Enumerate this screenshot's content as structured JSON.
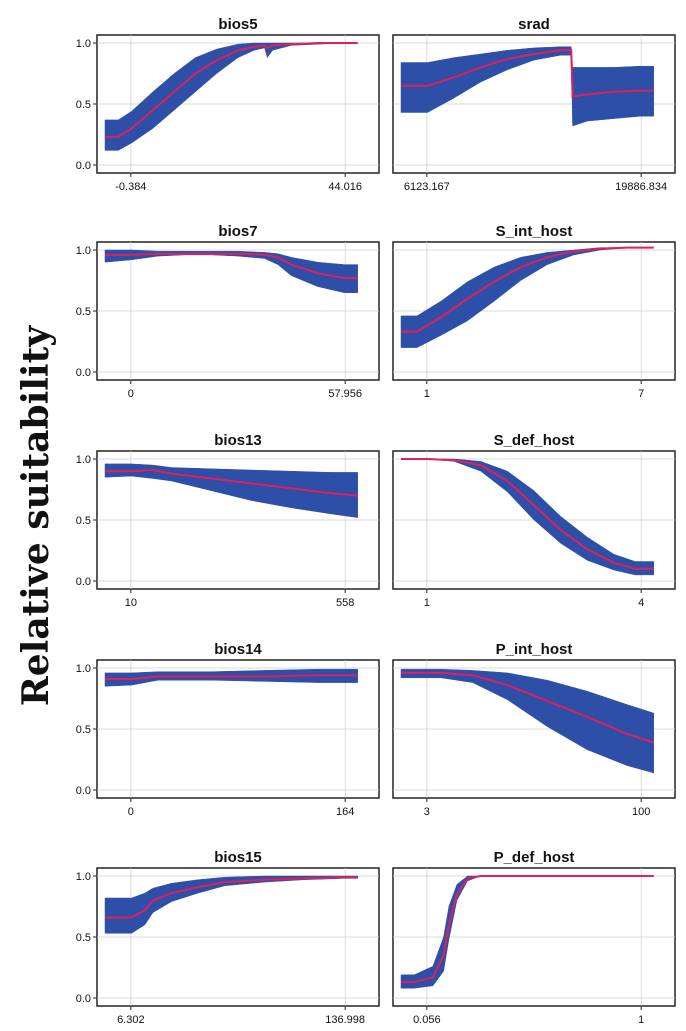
{
  "ylabel": "Relative suitability",
  "colors": {
    "band": "#2e4fa8",
    "line": "#e0205a",
    "frame": "#222222",
    "grid": "#cccccc"
  },
  "chart_data": [
    {
      "type": "area",
      "title": "bios5",
      "xticks": [
        "-0.384",
        "44.016"
      ],
      "yticks": [
        "0.0",
        "0.5",
        "1.0"
      ],
      "ylim": [
        0,
        1
      ],
      "xlim": [
        0,
        1
      ],
      "x": [
        0,
        0.05,
        0.1,
        0.18,
        0.26,
        0.34,
        0.42,
        0.5,
        0.56,
        0.6,
        0.61,
        0.63,
        0.7,
        0.8,
        0.9,
        0.95
      ],
      "y": [
        0.23,
        0.23,
        0.3,
        0.45,
        0.6,
        0.75,
        0.86,
        0.94,
        0.97,
        0.98,
        0.96,
        0.98,
        0.99,
        1.0,
        1.0,
        1.0
      ],
      "y_low": [
        0.12,
        0.12,
        0.18,
        0.3,
        0.45,
        0.6,
        0.75,
        0.88,
        0.94,
        0.96,
        0.88,
        0.94,
        0.98,
        0.99,
        1.0,
        1.0
      ],
      "y_high": [
        0.37,
        0.37,
        0.44,
        0.6,
        0.75,
        0.88,
        0.95,
        0.99,
        1.0,
        1.0,
        1.0,
        1.0,
        1.0,
        1.0,
        1.0,
        1.0
      ]
    },
    {
      "type": "area",
      "title": "srad",
      "xticks": [
        "6123.167",
        "19886.834"
      ],
      "yticks": [],
      "ylim": [
        0,
        1
      ],
      "xlim": [
        0,
        1
      ],
      "x": [
        0,
        0.1,
        0.2,
        0.3,
        0.4,
        0.5,
        0.6,
        0.64,
        0.645,
        0.7,
        0.8,
        0.9,
        0.95
      ],
      "y": [
        0.65,
        0.65,
        0.72,
        0.8,
        0.87,
        0.91,
        0.94,
        0.94,
        0.56,
        0.58,
        0.6,
        0.61,
        0.61
      ],
      "y_low": [
        0.43,
        0.43,
        0.55,
        0.68,
        0.78,
        0.86,
        0.9,
        0.9,
        0.32,
        0.36,
        0.38,
        0.4,
        0.4
      ],
      "y_high": [
        0.84,
        0.84,
        0.88,
        0.91,
        0.94,
        0.96,
        0.97,
        0.97,
        0.8,
        0.8,
        0.8,
        0.81,
        0.81
      ]
    },
    {
      "type": "area",
      "title": "bios7",
      "xticks": [
        "0",
        "57.956"
      ],
      "yticks": [
        "0.0",
        "0.5",
        "1.0"
      ],
      "ylim": [
        0,
        1
      ],
      "xlim": [
        0,
        1
      ],
      "x": [
        0,
        0.1,
        0.2,
        0.3,
        0.4,
        0.5,
        0.6,
        0.65,
        0.7,
        0.8,
        0.9,
        0.95
      ],
      "y": [
        0.96,
        0.96,
        0.97,
        0.97,
        0.97,
        0.97,
        0.96,
        0.94,
        0.88,
        0.81,
        0.77,
        0.77
      ],
      "y_low": [
        0.9,
        0.92,
        0.95,
        0.96,
        0.96,
        0.95,
        0.93,
        0.88,
        0.79,
        0.7,
        0.65,
        0.65
      ],
      "y_high": [
        1.0,
        1.0,
        0.99,
        0.99,
        0.99,
        0.99,
        0.98,
        0.97,
        0.94,
        0.9,
        0.88,
        0.88
      ]
    },
    {
      "type": "area",
      "title": "S_int_host",
      "xticks": [
        "1",
        "7"
      ],
      "yticks": [],
      "ylim": [
        0,
        1
      ],
      "xlim": [
        0,
        1
      ],
      "x": [
        0,
        0.06,
        0.15,
        0.25,
        0.35,
        0.45,
        0.55,
        0.65,
        0.75,
        0.85,
        0.95
      ],
      "y": [
        0.33,
        0.33,
        0.45,
        0.6,
        0.74,
        0.86,
        0.94,
        0.99,
        1.01,
        1.02,
        1.02
      ],
      "y_low": [
        0.2,
        0.2,
        0.3,
        0.42,
        0.58,
        0.75,
        0.88,
        0.96,
        1.0,
        1.02,
        1.02
      ],
      "y_high": [
        0.46,
        0.46,
        0.58,
        0.74,
        0.86,
        0.94,
        0.98,
        1.0,
        1.02,
        1.02,
        1.02
      ]
    },
    {
      "type": "area",
      "title": "bios13",
      "xticks": [
        "10",
        "558"
      ],
      "yticks": [
        "0.0",
        "0.5",
        "1.0"
      ],
      "ylim": [
        0,
        1
      ],
      "xlim": [
        0,
        1
      ],
      "x": [
        0,
        0.1,
        0.18,
        0.25,
        0.4,
        0.55,
        0.7,
        0.85,
        0.95
      ],
      "y": [
        0.9,
        0.9,
        0.91,
        0.88,
        0.84,
        0.8,
        0.76,
        0.72,
        0.7
      ],
      "y_low": [
        0.85,
        0.86,
        0.84,
        0.82,
        0.74,
        0.66,
        0.6,
        0.55,
        0.52
      ],
      "y_high": [
        0.96,
        0.96,
        0.95,
        0.93,
        0.92,
        0.91,
        0.9,
        0.89,
        0.89
      ]
    },
    {
      "type": "area",
      "title": "S_def_host",
      "xticks": [
        "1",
        "4"
      ],
      "yticks": [],
      "ylim": [
        0,
        1
      ],
      "xlim": [
        0,
        1
      ],
      "x": [
        0,
        0.1,
        0.2,
        0.3,
        0.4,
        0.5,
        0.6,
        0.7,
        0.8,
        0.88,
        0.95
      ],
      "y": [
        1.0,
        1.0,
        0.99,
        0.95,
        0.82,
        0.62,
        0.42,
        0.26,
        0.15,
        0.1,
        0.1
      ],
      "y_low": [
        1.0,
        1.0,
        0.98,
        0.9,
        0.73,
        0.5,
        0.31,
        0.17,
        0.09,
        0.05,
        0.05
      ],
      "y_high": [
        1.0,
        1.0,
        1.0,
        0.98,
        0.9,
        0.74,
        0.53,
        0.36,
        0.22,
        0.16,
        0.16
      ]
    },
    {
      "type": "area",
      "title": "bios14",
      "xticks": [
        "0",
        "164"
      ],
      "yticks": [
        "0.0",
        "0.5",
        "1.0"
      ],
      "ylim": [
        0,
        1
      ],
      "xlim": [
        0,
        1
      ],
      "x": [
        0,
        0.1,
        0.2,
        0.4,
        0.6,
        0.8,
        0.95
      ],
      "y": [
        0.91,
        0.91,
        0.93,
        0.93,
        0.93,
        0.94,
        0.94
      ],
      "y_low": [
        0.85,
        0.86,
        0.9,
        0.9,
        0.89,
        0.88,
        0.88
      ],
      "y_high": [
        0.96,
        0.96,
        0.97,
        0.97,
        0.98,
        0.99,
        0.99
      ]
    },
    {
      "type": "area",
      "title": "P_int_host",
      "xticks": [
        "3",
        "100"
      ],
      "yticks": [],
      "ylim": [
        0,
        1
      ],
      "xlim": [
        0,
        1
      ],
      "x": [
        0,
        0.15,
        0.27,
        0.4,
        0.55,
        0.7,
        0.85,
        0.95
      ],
      "y": [
        0.96,
        0.96,
        0.94,
        0.86,
        0.73,
        0.6,
        0.46,
        0.39
      ],
      "y_low": [
        0.92,
        0.92,
        0.88,
        0.74,
        0.52,
        0.33,
        0.2,
        0.14
      ],
      "y_high": [
        0.99,
        0.99,
        0.98,
        0.96,
        0.9,
        0.81,
        0.7,
        0.63
      ]
    },
    {
      "type": "area",
      "title": "bios15",
      "xticks": [
        "6.302",
        "136.998"
      ],
      "yticks": [
        "0.0",
        "0.5",
        "1.0"
      ],
      "ylim": [
        0,
        1
      ],
      "xlim": [
        0,
        1
      ],
      "x": [
        0,
        0.1,
        0.15,
        0.18,
        0.25,
        0.35,
        0.45,
        0.6,
        0.75,
        0.9,
        0.95
      ],
      "y": [
        0.66,
        0.66,
        0.72,
        0.8,
        0.86,
        0.91,
        0.95,
        0.97,
        0.98,
        0.99,
        0.99
      ],
      "y_low": [
        0.53,
        0.53,
        0.6,
        0.7,
        0.79,
        0.86,
        0.92,
        0.95,
        0.97,
        0.98,
        0.98
      ],
      "y_high": [
        0.82,
        0.82,
        0.86,
        0.9,
        0.94,
        0.97,
        0.99,
        1.0,
        1.0,
        1.0,
        1.0
      ]
    },
    {
      "type": "area",
      "title": "P_def_host",
      "xticks": [
        "0.056",
        "1"
      ],
      "yticks": [],
      "ylim": [
        0,
        1
      ],
      "xlim": [
        0,
        1
      ],
      "x": [
        0,
        0.05,
        0.12,
        0.16,
        0.18,
        0.21,
        0.25,
        0.3,
        0.4,
        0.6,
        0.8,
        0.95
      ],
      "y": [
        0.13,
        0.13,
        0.17,
        0.35,
        0.6,
        0.85,
        0.98,
        1.0,
        1.0,
        1.0,
        1.0,
        1.0
      ],
      "y_low": [
        0.08,
        0.08,
        0.1,
        0.22,
        0.48,
        0.8,
        0.96,
        1.0,
        1.0,
        1.0,
        1.0,
        1.0
      ],
      "y_high": [
        0.19,
        0.19,
        0.26,
        0.5,
        0.75,
        0.93,
        1.0,
        1.0,
        1.0,
        1.0,
        1.0,
        1.0
      ]
    }
  ]
}
